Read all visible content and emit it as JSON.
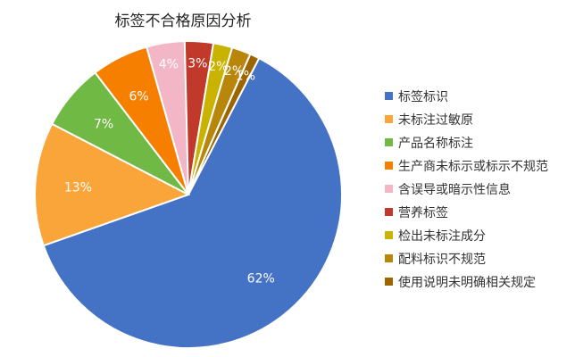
{
  "chart_data": {
    "type": "pie",
    "title": "标签不合格原因分析",
    "legend_position": "right",
    "slices": [
      {
        "label": "标签标识",
        "value": 62,
        "display": "62%",
        "color": "#4472C4"
      },
      {
        "label": "未标注过敏原",
        "value": 13,
        "display": "13%",
        "color": "#F9A53A"
      },
      {
        "label": "产品名称标注",
        "value": 7,
        "display": "7%",
        "color": "#70B944"
      },
      {
        "label": "生产商未标示或标示不规范",
        "value": 6,
        "display": "6%",
        "color": "#F77F00"
      },
      {
        "label": "含误导或暗示性信息",
        "value": 4,
        "display": "4%",
        "color": "#F2B6C6"
      },
      {
        "label": "营养标签",
        "value": 3,
        "display": "3%",
        "color": "#C0392B"
      },
      {
        "label": "检出未标注成分",
        "value": 2,
        "display": "2%",
        "color": "#C9B200"
      },
      {
        "label": "配料标识不规范",
        "value": 2,
        "display": "2%",
        "color": "#B8860B"
      },
      {
        "label": "使用说明未明确相关规定",
        "value": 1,
        "display": "1%",
        "color": "#9C6500"
      }
    ]
  }
}
